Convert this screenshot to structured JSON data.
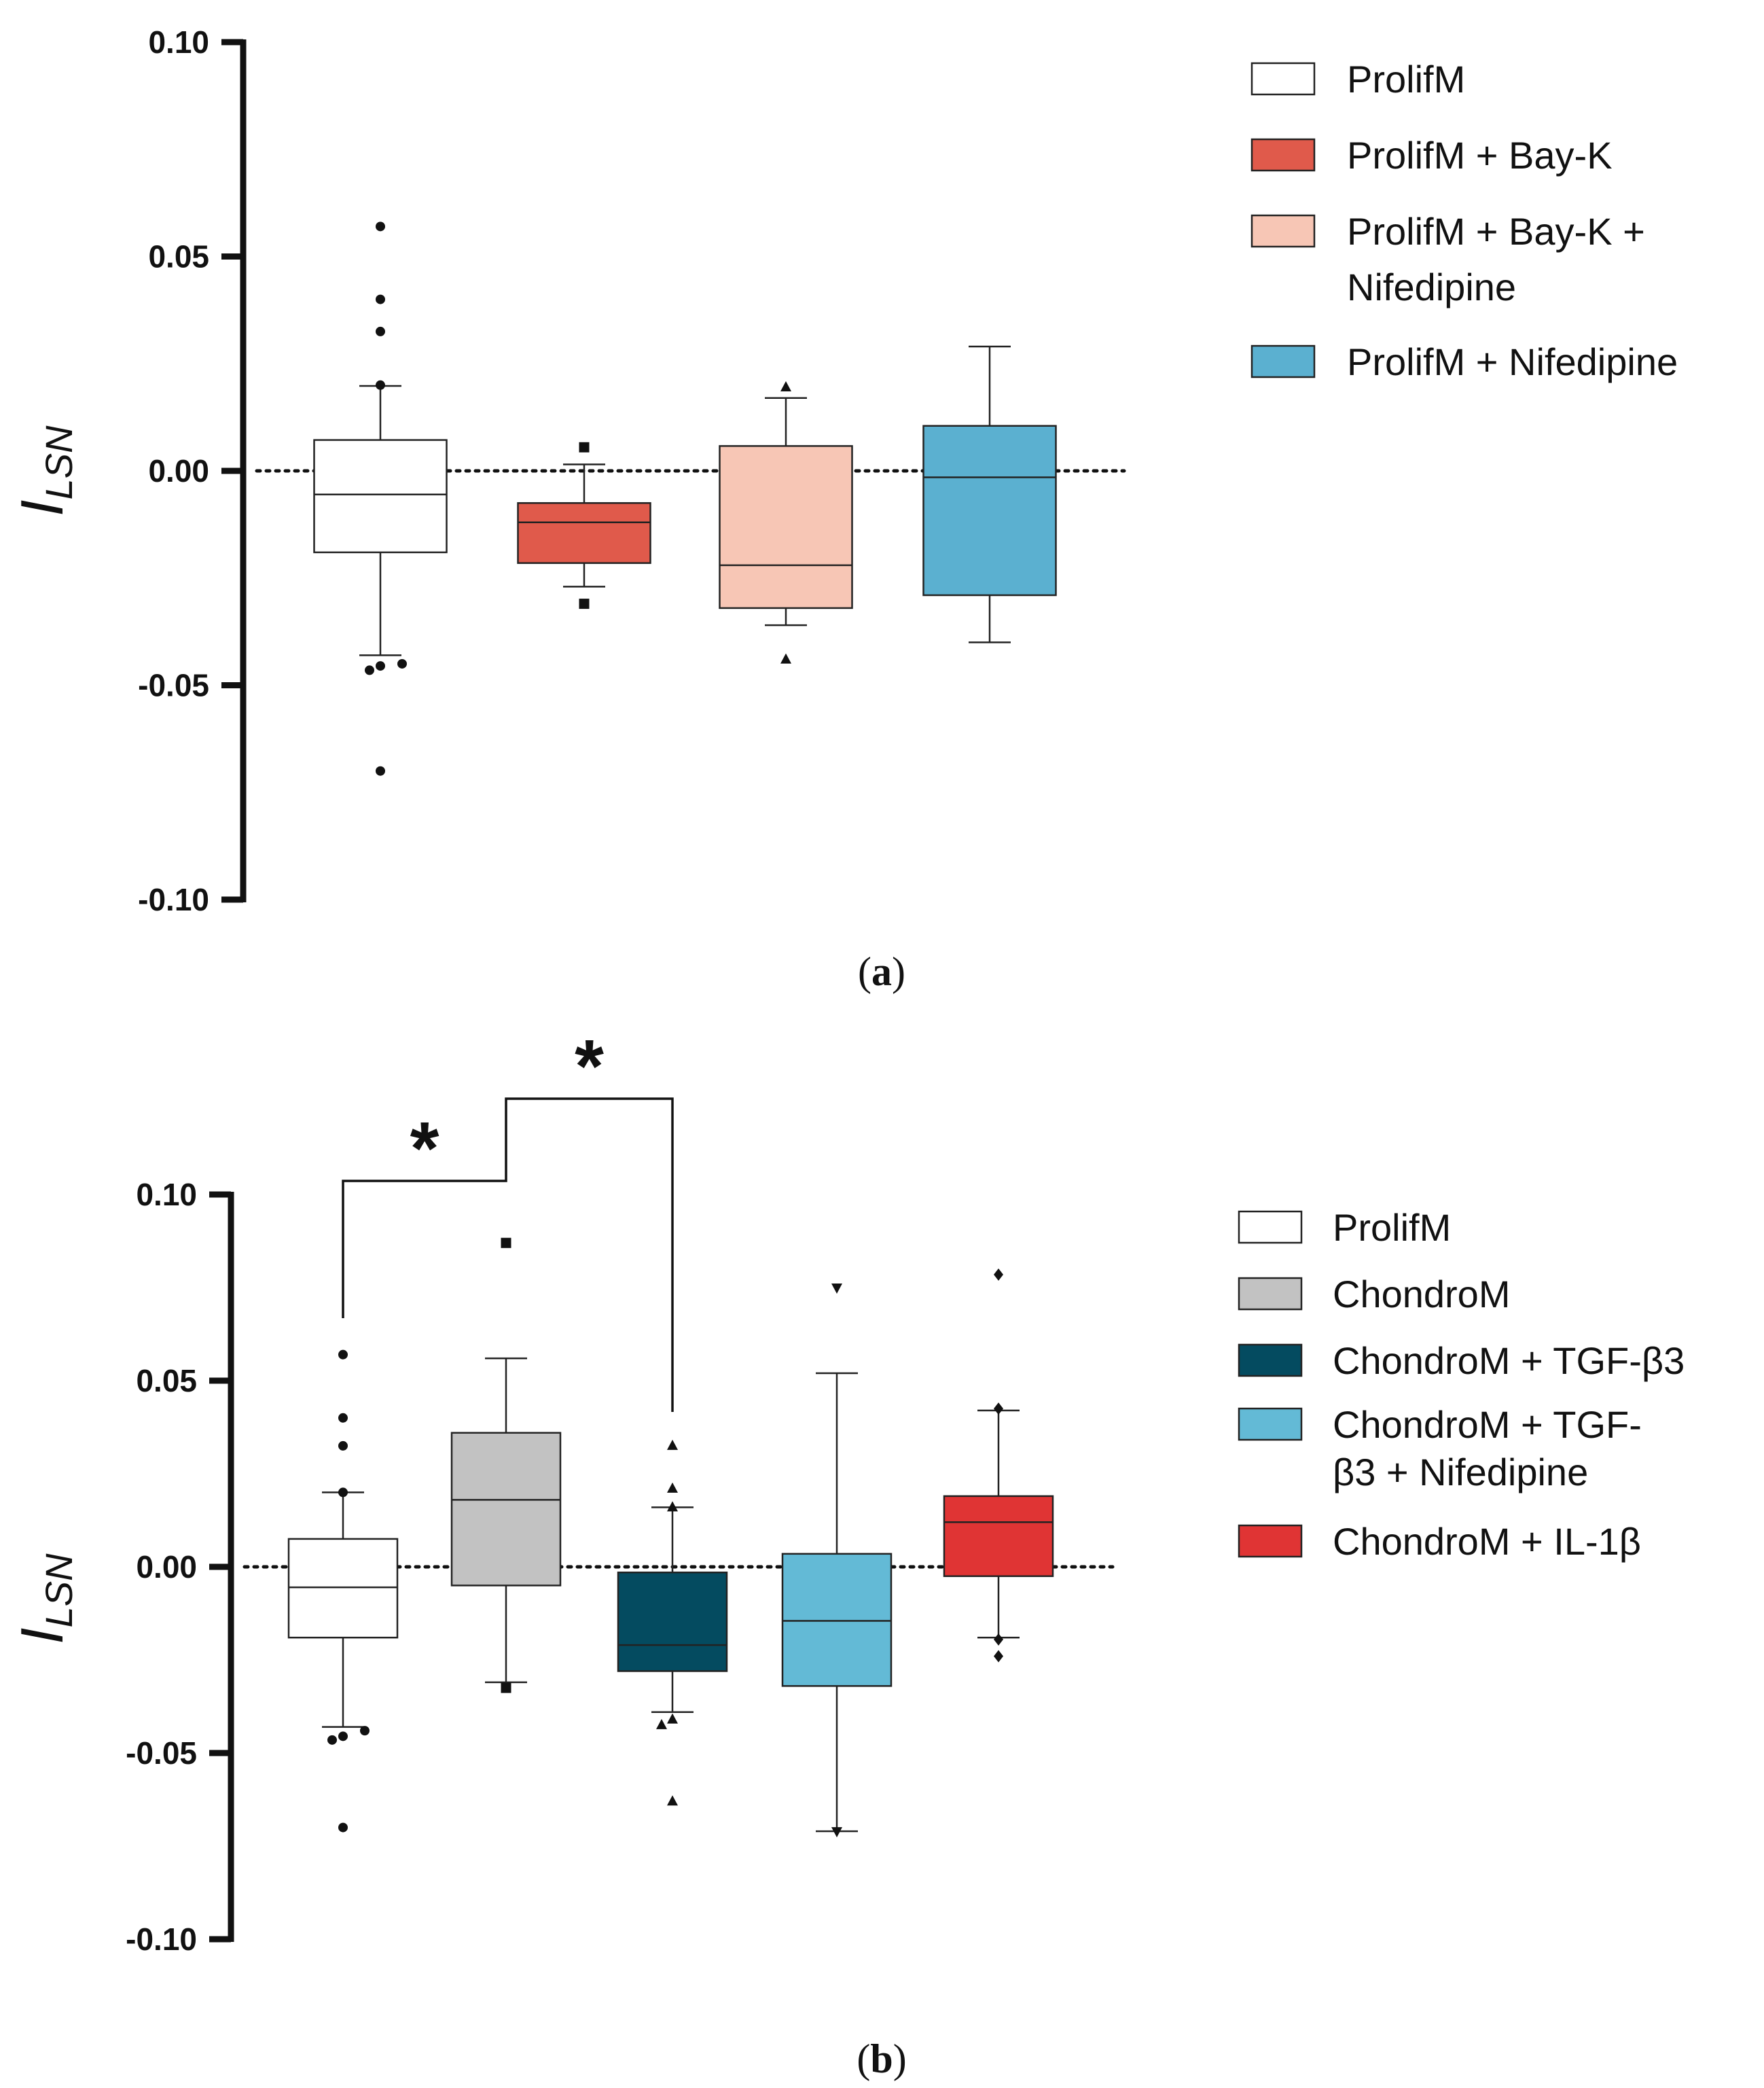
{
  "chart_data": [
    {
      "type": "box",
      "panel_label": "a",
      "ylabel_main": "I",
      "ylabel_sub": "LSN",
      "ylim": [
        -0.1,
        0.1
      ],
      "yticks": [
        {
          "value": 0.1,
          "label": "0.10"
        },
        {
          "value": 0.05,
          "label": "0.05"
        },
        {
          "value": 0.0,
          "label": "0.00"
        },
        {
          "value": -0.05,
          "label": "-0.05"
        },
        {
          "value": -0.1,
          "label": "-0.10"
        }
      ],
      "reference_line": 0.0,
      "groups": [
        {
          "name": "ProlifM",
          "color": "#ffffff",
          "marker": "circle",
          "whisker_low": -0.043,
          "q1": -0.019,
          "median": -0.0055,
          "q3": 0.0072,
          "whisker_high": 0.0198,
          "outliers": [
            0.057,
            0.04,
            0.0325,
            0.02,
            -0.0455,
            -0.0465,
            -0.045,
            -0.07
          ]
        },
        {
          "name": "ProlifM + Bay-K",
          "color": "#e05a4b",
          "marker": "square",
          "whisker_low": -0.027,
          "q1": -0.0215,
          "median": -0.012,
          "q3": -0.0075,
          "whisker_high": 0.0015,
          "outliers": [
            0.0055,
            -0.031
          ]
        },
        {
          "name": "ProlifM + Bay-K + Nifedipine",
          "color": "#f7c6b5",
          "marker": "triangle",
          "whisker_low": -0.036,
          "q1": -0.032,
          "median": -0.022,
          "q3": 0.0058,
          "whisker_high": 0.017,
          "outliers": [
            0.0195,
            -0.044
          ]
        },
        {
          "name": "ProlifM + Nifedipine",
          "color": "#5bb0d0",
          "marker": "none",
          "whisker_low": -0.04,
          "q1": -0.029,
          "median": -0.0015,
          "q3": 0.0105,
          "whisker_high": 0.029,
          "outliers": []
        }
      ],
      "legend": [
        {
          "label": "ProlifM",
          "color": "#ffffff"
        },
        {
          "label": "ProlifM + Bay-K",
          "color": "#e05a4b"
        },
        {
          "label": "ProlifM + Bay-K +",
          "label2": "Nifedipine",
          "color": "#f7c6b5"
        },
        {
          "label": "ProlifM + Nifedipine",
          "color": "#5bb0d0"
        }
      ]
    },
    {
      "type": "box",
      "panel_label": "b",
      "ylabel_main": "I",
      "ylabel_sub": "LSN",
      "ylim": [
        -0.1,
        0.1
      ],
      "yticks": [
        {
          "value": 0.1,
          "label": "0.10"
        },
        {
          "value": 0.05,
          "label": "0.05"
        },
        {
          "value": 0.0,
          "label": "0.00"
        },
        {
          "value": -0.05,
          "label": "-0.05"
        },
        {
          "value": -0.1,
          "label": "-0.10"
        }
      ],
      "reference_line": 0.0,
      "significance": [
        {
          "from": 0,
          "to": 1,
          "label": "*"
        },
        {
          "from": 1,
          "to": 2,
          "label": "*"
        }
      ],
      "groups": [
        {
          "name": "ProlifM",
          "color": "#ffffff",
          "marker": "circle",
          "whisker_low": -0.043,
          "q1": -0.019,
          "median": -0.0055,
          "q3": 0.0075,
          "whisker_high": 0.02,
          "outliers": [
            0.057,
            0.04,
            0.0325,
            0.02,
            -0.0455,
            -0.0465,
            -0.044,
            -0.07
          ]
        },
        {
          "name": "ChondroM",
          "color": "#c2c2c2",
          "marker": "square",
          "whisker_low": -0.031,
          "q1": -0.005,
          "median": 0.018,
          "q3": 0.036,
          "whisker_high": 0.056,
          "outliers": [
            0.087,
            -0.0325
          ]
        },
        {
          "name": "ChondroM + TGF-β3",
          "color": "#044b60",
          "marker": "triangle",
          "whisker_low": -0.039,
          "q1": -0.028,
          "median": -0.021,
          "q3": -0.0015,
          "whisker_high": 0.016,
          "outliers": [
            0.0325,
            0.021,
            0.016,
            -0.041,
            -0.0425,
            -0.063
          ]
        },
        {
          "name": "ChondroM + TGF-β3 + Nifedipine",
          "color": "#63bad6",
          "marker": "triangle-down",
          "whisker_low": -0.071,
          "q1": -0.032,
          "median": -0.0145,
          "q3": 0.0035,
          "whisker_high": 0.052,
          "outliers": [
            0.075,
            -0.071
          ]
        },
        {
          "name": "ChondroM + IL-1β",
          "color": "#e03434",
          "marker": "diamond",
          "whisker_low": -0.019,
          "q1": -0.0025,
          "median": 0.012,
          "q3": 0.019,
          "whisker_high": 0.042,
          "outliers": [
            0.0785,
            0.0425,
            -0.0195,
            -0.024
          ]
        }
      ],
      "legend": [
        {
          "label": "ProlifM",
          "color": "#ffffff"
        },
        {
          "label": "ChondroM",
          "color": "#c2c2c2"
        },
        {
          "label": "ChondroM + TGF-β3",
          "color": "#044b60"
        },
        {
          "label": "ChondroM + TGF-",
          "label2": "β3 + Nifedipine",
          "color": "#63bad6"
        },
        {
          "label": "ChondroM + IL-1β",
          "color": "#e03434"
        }
      ]
    }
  ]
}
